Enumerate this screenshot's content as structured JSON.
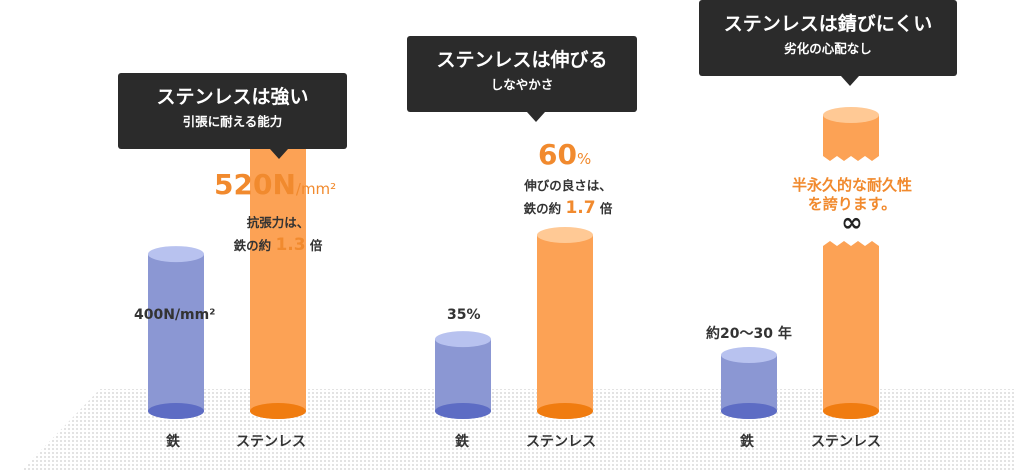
{
  "panels": [
    {
      "title": "ステンレスは強い",
      "subtitle": "引張に耐える能力",
      "highlight_value": "520N",
      "highlight_unit": "/mm²",
      "note_line1": "抗張力は、",
      "note_prefix": "鉄の約",
      "note_ratio": "1.3",
      "note_suffix": "倍",
      "iron_label": "400N/mm²",
      "category_iron": "鉄",
      "category_stainless": "ステンレス"
    },
    {
      "title": "ステンレスは伸びる",
      "subtitle": "しなやかさ",
      "highlight_value": "60",
      "highlight_unit": "%",
      "note_line1": "伸びの良さは、",
      "note_prefix": "鉄の約",
      "note_ratio": "1.7",
      "note_suffix": "倍",
      "iron_label": "35%",
      "category_iron": "鉄",
      "category_stainless": "ステンレス"
    },
    {
      "title": "ステンレスは錆びにくい",
      "subtitle": "劣化の心配なし",
      "stainless_text_line1": "半永久的な耐久性",
      "stainless_text_line2": "を誇ります。",
      "infinity": "∞",
      "iron_label": "約20〜30 年",
      "category_iron": "鉄",
      "category_stainless": "ステンレス"
    }
  ],
  "chart_data": [
    {
      "type": "bar",
      "title": "ステンレスは強い",
      "categories": [
        "鉄",
        "ステンレス"
      ],
      "values": [
        400,
        520
      ],
      "unit": "N/mm²"
    },
    {
      "type": "bar",
      "title": "ステンレスは伸びる",
      "categories": [
        "鉄",
        "ステンレス"
      ],
      "values": [
        35,
        60
      ],
      "unit": "%"
    },
    {
      "type": "bar",
      "title": "ステンレスは錆びにくい",
      "categories": [
        "鉄",
        "ステンレス"
      ],
      "values": [
        "20〜30",
        "∞"
      ],
      "unit": "年"
    }
  ],
  "colors": {
    "iron_body": "#8b97d3",
    "iron_top": "#b8c2ef",
    "iron_bottom": "#5d6cc4",
    "stainless_body": "#fca255",
    "stainless_top": "#ffc995",
    "stainless_bottom": "#f07c10",
    "accent_text": "#f18a2e",
    "bubble": "#2b2b2b"
  }
}
